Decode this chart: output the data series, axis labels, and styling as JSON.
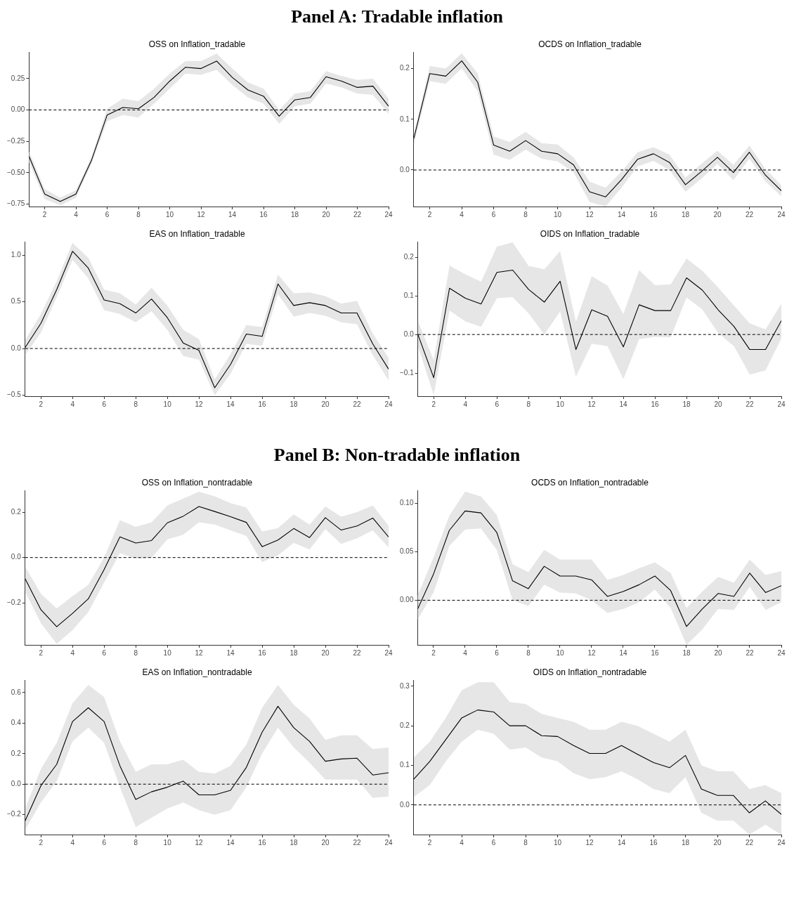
{
  "chart_data": [
    {
      "type": "line",
      "subtitle": "Panel A: Tradable inflation",
      "title": "OSS on Inflation_tradable",
      "x": [
        1,
        2,
        3,
        4,
        5,
        6,
        7,
        8,
        9,
        10,
        11,
        12,
        13,
        14,
        15,
        16,
        17,
        18,
        19,
        20,
        21,
        22,
        23,
        24
      ],
      "xlim": [
        1,
        24
      ],
      "xticks": [
        2,
        4,
        6,
        8,
        10,
        12,
        14,
        16,
        18,
        20,
        22,
        24
      ],
      "ylim": [
        -0.77,
        0.46
      ],
      "yticks": [
        {
          "value": -0.75,
          "label": "−0.75"
        },
        {
          "value": -0.5,
          "label": "−0.50"
        },
        {
          "value": -0.25,
          "label": "−0.25"
        },
        {
          "value": 0,
          "label": "0.00"
        },
        {
          "value": 0.25,
          "label": "0.25"
        }
      ],
      "ref_lines": [
        {
          "axis": "y",
          "value": 0,
          "line_style": "dashed",
          "color": "#000000"
        }
      ],
      "legend": false,
      "series": [
        {
          "color": "#000000",
          "values": [
            -0.37,
            -0.67,
            -0.73,
            -0.67,
            -0.4,
            -0.04,
            0.02,
            0.01,
            0.1,
            0.23,
            0.34,
            0.33,
            0.39,
            0.26,
            0.16,
            0.11,
            -0.05,
            0.08,
            0.1,
            0.265,
            0.23,
            0.18,
            0.19,
            0.03
          ],
          "lower": [
            -0.42,
            -0.71,
            -0.76,
            -0.7,
            -0.43,
            -0.09,
            -0.04,
            -0.06,
            0.05,
            0.17,
            0.29,
            0.28,
            0.32,
            0.2,
            0.1,
            0.05,
            -0.11,
            0.03,
            0.05,
            0.21,
            0.18,
            0.13,
            0.12,
            -0.03
          ],
          "upper": [
            -0.33,
            -0.63,
            -0.7,
            -0.64,
            -0.37,
            0.01,
            0.09,
            0.07,
            0.17,
            0.29,
            0.39,
            0.39,
            0.45,
            0.33,
            0.22,
            0.17,
            0,
            0.13,
            0.15,
            0.31,
            0.27,
            0.24,
            0.25,
            0.09
          ]
        }
      ]
    },
    {
      "type": "line",
      "title": "OCDS on Inflation_tradable",
      "x": [
        1,
        2,
        3,
        4,
        5,
        6,
        7,
        8,
        9,
        10,
        11,
        12,
        13,
        14,
        15,
        16,
        17,
        18,
        19,
        20,
        21,
        22,
        23,
        24
      ],
      "xlim": [
        1,
        24
      ],
      "xticks": [
        2,
        4,
        6,
        8,
        10,
        12,
        14,
        16,
        18,
        20,
        22,
        24
      ],
      "ylim": [
        -0.072,
        0.232
      ],
      "yticks": [
        {
          "value": 0,
          "label": "0.0"
        },
        {
          "value": 0.1,
          "label": "0.1"
        },
        {
          "value": 0.2,
          "label": "0.2"
        }
      ],
      "ref_lines": [
        {
          "axis": "y",
          "value": 0,
          "line_style": "dashed",
          "color": "#000000"
        }
      ],
      "legend": false,
      "series": [
        {
          "color": "#000000",
          "values": [
            0.062,
            0.19,
            0.185,
            0.215,
            0.173,
            0.049,
            0.037,
            0.058,
            0.037,
            0.032,
            0.01,
            -0.043,
            -0.053,
            -0.019,
            0.021,
            0.032,
            0.015,
            -0.029,
            -0.003,
            0.025,
            -0.005,
            0.035,
            -0.01,
            -0.041
          ],
          "lower": [
            0.05,
            0.175,
            0.17,
            0.2,
            0.155,
            0.03,
            0.02,
            0.04,
            0.022,
            0.017,
            -0.005,
            -0.063,
            -0.072,
            -0.035,
            0.007,
            0.018,
            0,
            -0.043,
            -0.017,
            0.012,
            -0.02,
            0.022,
            -0.022,
            -0.052
          ],
          "upper": [
            0.07,
            0.205,
            0.2,
            0.23,
            0.19,
            0.066,
            0.055,
            0.075,
            0.053,
            0.05,
            0.025,
            -0.023,
            -0.035,
            -0.003,
            0.035,
            0.045,
            0.03,
            -0.015,
            0.012,
            0.038,
            0.01,
            0.048,
            0.002,
            -0.03
          ]
        }
      ]
    },
    {
      "type": "line",
      "title": "EAS on Inflation_tradable",
      "x": [
        1,
        2,
        3,
        4,
        5,
        6,
        7,
        8,
        9,
        10,
        11,
        12,
        13,
        14,
        15,
        16,
        17,
        18,
        19,
        20,
        21,
        22,
        23,
        24
      ],
      "xlim": [
        1,
        24
      ],
      "xticks": [
        2,
        4,
        6,
        8,
        10,
        12,
        14,
        16,
        18,
        20,
        22,
        24
      ],
      "ylim": [
        -0.51,
        1.14
      ],
      "yticks": [
        {
          "value": -0.5,
          "label": "−0.5"
        },
        {
          "value": 0,
          "label": "0.0"
        },
        {
          "value": 0.5,
          "label": "0.5"
        },
        {
          "value": 1,
          "label": "1.0"
        }
      ],
      "ref_lines": [
        {
          "axis": "y",
          "value": 0,
          "line_style": "dashed",
          "color": "#000000"
        }
      ],
      "legend": false,
      "series": [
        {
          "color": "#000000",
          "values": [
            0.01,
            0.27,
            0.63,
            1.04,
            0.86,
            0.52,
            0.48,
            0.38,
            0.53,
            0.33,
            0.06,
            -0.02,
            -0.42,
            -0.17,
            0.155,
            0.13,
            0.69,
            0.46,
            0.49,
            0.46,
            0.38,
            0.38,
            0.05,
            -0.22
          ],
          "lower": [
            -0.07,
            0.17,
            0.55,
            0.95,
            0.75,
            0.41,
            0.37,
            0.28,
            0.4,
            0.2,
            -0.08,
            -0.12,
            -0.5,
            -0.27,
            0.05,
            0.03,
            0.58,
            0.34,
            0.38,
            0.35,
            0.28,
            0.26,
            -0.07,
            -0.34
          ],
          "upper": [
            0.09,
            0.37,
            0.72,
            1.13,
            0.97,
            0.63,
            0.59,
            0.47,
            0.65,
            0.46,
            0.2,
            0.1,
            -0.33,
            -0.06,
            0.25,
            0.23,
            0.79,
            0.59,
            0.6,
            0.56,
            0.48,
            0.51,
            0.16,
            -0.1
          ]
        }
      ]
    },
    {
      "type": "line",
      "title": "OIDS on Inflation_tradable",
      "x": [
        1,
        2,
        3,
        4,
        5,
        6,
        7,
        8,
        9,
        10,
        11,
        12,
        13,
        14,
        15,
        16,
        17,
        18,
        19,
        20,
        21,
        22,
        23,
        24
      ],
      "xlim": [
        1,
        24
      ],
      "xticks": [
        2,
        4,
        6,
        8,
        10,
        12,
        14,
        16,
        18,
        20,
        22,
        24
      ],
      "ylim": [
        -0.16,
        0.24
      ],
      "yticks": [
        {
          "value": -0.1,
          "label": "−0.1"
        },
        {
          "value": 0,
          "label": "0.0"
        },
        {
          "value": 0.1,
          "label": "0.1"
        },
        {
          "value": 0.2,
          "label": "0.2"
        }
      ],
      "ref_lines": [
        {
          "axis": "y",
          "value": 0,
          "line_style": "dashed",
          "color": "#000000"
        }
      ],
      "legend": false,
      "series": [
        {
          "color": "#000000",
          "values": [
            0,
            -0.112,
            0.12,
            0.094,
            0.079,
            0.161,
            0.167,
            0.117,
            0.084,
            0.138,
            -0.039,
            0.064,
            0.047,
            -0.032,
            0.077,
            0.062,
            0.062,
            0.147,
            0.115,
            0.064,
            0.021,
            -0.039,
            -0.039,
            0.036
          ],
          "lower": [
            -0.03,
            -0.157,
            0.062,
            0.034,
            0.02,
            0.094,
            0.097,
            0.055,
            0,
            0.06,
            -0.109,
            -0.024,
            -0.03,
            -0.116,
            -0.012,
            -0.006,
            -0.007,
            0.096,
            0.065,
            0.004,
            -0.03,
            -0.104,
            -0.093,
            -0.01
          ],
          "upper": [
            0.035,
            -0.067,
            0.179,
            0.156,
            0.137,
            0.228,
            0.239,
            0.178,
            0.169,
            0.216,
            0.033,
            0.151,
            0.127,
            0.053,
            0.167,
            0.128,
            0.13,
            0.197,
            0.165,
            0.122,
            0.075,
            0.029,
            0.013,
            0.08
          ]
        }
      ]
    },
    {
      "type": "line",
      "subtitle": "Panel B: Non-tradable inflation",
      "title": "OSS on Inflation_nontradable",
      "x": [
        1,
        2,
        3,
        4,
        5,
        6,
        7,
        8,
        9,
        10,
        11,
        12,
        13,
        14,
        15,
        16,
        17,
        18,
        19,
        20,
        21,
        22,
        23,
        24
      ],
      "xlim": [
        1,
        24
      ],
      "xticks": [
        2,
        4,
        6,
        8,
        10,
        12,
        14,
        16,
        18,
        20,
        22,
        24
      ],
      "ylim": [
        -0.385,
        0.295
      ],
      "yticks": [
        {
          "value": -0.2,
          "label": "−0.2"
        },
        {
          "value": 0,
          "label": "0.0"
        },
        {
          "value": 0.2,
          "label": "0.2"
        }
      ],
      "ref_lines": [
        {
          "axis": "y",
          "value": 0,
          "line_style": "dashed",
          "color": "#000000"
        }
      ],
      "legend": false,
      "series": [
        {
          "color": "#000000",
          "values": [
            -0.093,
            -0.23,
            -0.305,
            -0.246,
            -0.182,
            -0.053,
            0.091,
            0.064,
            0.075,
            0.153,
            0.182,
            0.225,
            0.203,
            0.18,
            0.155,
            0.048,
            0.077,
            0.128,
            0.088,
            0.176,
            0.121,
            0.139,
            0.174,
            0.091
          ],
          "lower": [
            -0.15,
            -0.29,
            -0.38,
            -0.32,
            -0.24,
            -0.11,
            0.02,
            -0.005,
            -0.002,
            0.08,
            0.1,
            0.155,
            0.145,
            0.12,
            0.095,
            -0.02,
            0.01,
            0.065,
            0.035,
            0.125,
            0.06,
            0.085,
            0.12,
            0.045
          ],
          "upper": [
            -0.04,
            -0.16,
            -0.225,
            -0.17,
            -0.12,
            0,
            0.165,
            0.135,
            0.155,
            0.23,
            0.26,
            0.29,
            0.27,
            0.24,
            0.22,
            0.115,
            0.13,
            0.19,
            0.145,
            0.225,
            0.18,
            0.2,
            0.23,
            0.14
          ]
        }
      ]
    },
    {
      "type": "line",
      "title": "OCDS on Inflation_nontradable",
      "x": [
        1,
        2,
        3,
        4,
        5,
        6,
        7,
        8,
        9,
        10,
        11,
        12,
        13,
        14,
        15,
        16,
        17,
        18,
        19,
        20,
        21,
        22,
        23,
        24
      ],
      "xlim": [
        1,
        24
      ],
      "xticks": [
        2,
        4,
        6,
        8,
        10,
        12,
        14,
        16,
        18,
        20,
        22,
        24
      ],
      "ylim": [
        -0.046,
        0.113
      ],
      "yticks": [
        {
          "value": 0,
          "label": "0.00"
        },
        {
          "value": 0.05,
          "label": "0.05"
        },
        {
          "value": 0.1,
          "label": "0.10"
        }
      ],
      "ref_lines": [
        {
          "axis": "y",
          "value": 0,
          "line_style": "dashed",
          "color": "#000000"
        }
      ],
      "legend": false,
      "series": [
        {
          "color": "#000000",
          "values": [
            -0.009,
            0.027,
            0.072,
            0.092,
            0.09,
            0.07,
            0.02,
            0.012,
            0.035,
            0.025,
            0.025,
            0.021,
            0.004,
            0.009,
            0.016,
            0.025,
            0.01,
            -0.027,
            -0.009,
            0.007,
            0.004,
            0.028,
            0.008,
            0.015
          ],
          "lower": [
            -0.02,
            0.008,
            0.056,
            0.073,
            0.074,
            0.052,
            0,
            -0.006,
            0.016,
            0.008,
            0.007,
            0,
            -0.013,
            -0.009,
            -0.002,
            0.011,
            -0.008,
            -0.046,
            -0.03,
            -0.009,
            -0.01,
            0.014,
            -0.01,
            -0.002
          ],
          "upper": [
            0.005,
            0.044,
            0.087,
            0.112,
            0.107,
            0.088,
            0.037,
            0.029,
            0.052,
            0.042,
            0.042,
            0.042,
            0.021,
            0.026,
            0.033,
            0.039,
            0.028,
            -0.008,
            0.009,
            0.024,
            0.018,
            0.042,
            0.026,
            0.03
          ]
        }
      ]
    },
    {
      "type": "line",
      "title": "EAS on Inflation_nontradable",
      "x": [
        1,
        2,
        3,
        4,
        5,
        6,
        7,
        8,
        9,
        10,
        11,
        12,
        13,
        14,
        15,
        16,
        17,
        18,
        19,
        20,
        21,
        22,
        23,
        24
      ],
      "xlim": [
        1,
        24
      ],
      "xticks": [
        2,
        4,
        6,
        8,
        10,
        12,
        14,
        16,
        18,
        20,
        22,
        24
      ],
      "ylim": [
        -0.33,
        0.68
      ],
      "yticks": [
        {
          "value": -0.2,
          "label": "−0.2"
        },
        {
          "value": 0,
          "label": "0.0"
        },
        {
          "value": 0.2,
          "label": "0.2"
        },
        {
          "value": 0.4,
          "label": "0.4"
        },
        {
          "value": 0.6,
          "label": "0.6"
        }
      ],
      "ref_lines": [
        {
          "axis": "y",
          "value": 0,
          "line_style": "dashed",
          "color": "#000000"
        }
      ],
      "legend": false,
      "series": [
        {
          "color": "#000000",
          "values": [
            -0.24,
            -0.01,
            0.13,
            0.41,
            0.5,
            0.41,
            0.12,
            -0.1,
            -0.05,
            -0.02,
            0.02,
            -0.07,
            -0.07,
            -0.04,
            0.11,
            0.34,
            0.51,
            0.37,
            0.28,
            0.15,
            0.165,
            0.17,
            0.06,
            0.075
          ],
          "lower": [
            -0.3,
            -0.12,
            0.02,
            0.28,
            0.37,
            0.27,
            -0.02,
            -0.28,
            -0.22,
            -0.16,
            -0.12,
            -0.17,
            -0.2,
            -0.17,
            -0.02,
            0.2,
            0.37,
            0.24,
            0.14,
            0.03,
            0.03,
            0.03,
            -0.09,
            -0.08
          ],
          "upper": [
            -0.16,
            0.1,
            0.27,
            0.53,
            0.65,
            0.57,
            0.28,
            0.08,
            0.13,
            0.13,
            0.16,
            0.08,
            0.07,
            0.12,
            0.26,
            0.5,
            0.65,
            0.52,
            0.43,
            0.29,
            0.32,
            0.32,
            0.23,
            0.24
          ]
        }
      ]
    },
    {
      "type": "line",
      "title": "OIDS on Inflation_nontradable",
      "x": [
        1,
        2,
        3,
        4,
        5,
        6,
        7,
        8,
        9,
        10,
        11,
        12,
        13,
        14,
        15,
        16,
        17,
        18,
        19,
        20,
        21,
        22,
        23,
        24
      ],
      "xlim": [
        1,
        24
      ],
      "xticks": [
        2,
        4,
        6,
        8,
        10,
        12,
        14,
        16,
        18,
        20,
        22,
        24
      ],
      "ylim": [
        -0.075,
        0.315
      ],
      "yticks": [
        {
          "value": 0,
          "label": "0.0"
        },
        {
          "value": 0.1,
          "label": "0.1"
        },
        {
          "value": 0.2,
          "label": "0.2"
        },
        {
          "value": 0.3,
          "label": "0.3"
        }
      ],
      "ref_lines": [
        {
          "axis": "y",
          "value": 0,
          "line_style": "dashed",
          "color": "#000000"
        }
      ],
      "legend": false,
      "series": [
        {
          "color": "#000000",
          "values": [
            0.065,
            0.11,
            0.165,
            0.22,
            0.24,
            0.235,
            0.2,
            0.2,
            0.175,
            0.173,
            0.15,
            0.13,
            0.13,
            0.15,
            0.128,
            0.107,
            0.094,
            0.125,
            0.04,
            0.024,
            0.024,
            -0.02,
            0.01,
            -0.024
          ],
          "lower": [
            0.02,
            0.05,
            0.11,
            0.16,
            0.19,
            0.18,
            0.14,
            0.145,
            0.12,
            0.11,
            0.08,
            0.065,
            0.07,
            0.085,
            0.065,
            0.04,
            0.03,
            0.07,
            -0.02,
            -0.04,
            -0.04,
            -0.075,
            -0.05,
            -0.075
          ],
          "upper": [
            0.12,
            0.16,
            0.22,
            0.29,
            0.31,
            0.31,
            0.26,
            0.255,
            0.23,
            0.22,
            0.21,
            0.19,
            0.19,
            0.21,
            0.2,
            0.18,
            0.16,
            0.19,
            0.1,
            0.085,
            0.085,
            0.04,
            0.05,
            0.03
          ]
        }
      ]
    }
  ]
}
